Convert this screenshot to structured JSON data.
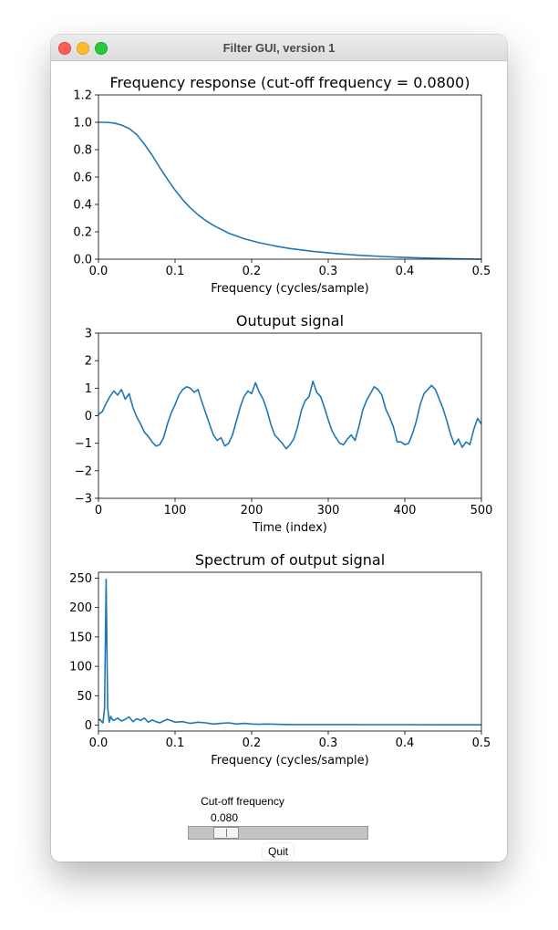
{
  "window": {
    "title": "Filter GUI, version 1"
  },
  "colors": {
    "line": "#1f77b4"
  },
  "controls": {
    "slider_label": "Cut-off frequency",
    "slider_value": "0.080",
    "slider_fraction": 0.16,
    "quit_label": "Quit"
  },
  "chart_data": [
    {
      "type": "line",
      "title": "Frequency response (cut-off frequency = 0.0800)",
      "xlabel": "Frequency (cycles/sample)",
      "ylabel": "",
      "xlim": [
        0,
        0.5
      ],
      "ylim": [
        0,
        1.2
      ],
      "xticks": [
        "0.0",
        "0.1",
        "0.2",
        "0.3",
        "0.4",
        "0.5"
      ],
      "yticks": [
        "0.0",
        "0.2",
        "0.4",
        "0.6",
        "0.8",
        "1.0",
        "1.2"
      ],
      "grid": false,
      "series": [
        {
          "x": [
            0,
            0.01,
            0.02,
            0.03,
            0.04,
            0.05,
            0.06,
            0.07,
            0.08,
            0.09,
            0.1,
            0.11,
            0.12,
            0.13,
            0.14,
            0.15,
            0.17,
            0.19,
            0.21,
            0.23,
            0.25,
            0.28,
            0.31,
            0.34,
            0.37,
            0.4,
            0.43,
            0.46,
            0.5
          ],
          "y": [
            1.0,
            1.0,
            0.995,
            0.98,
            0.955,
            0.91,
            0.84,
            0.76,
            0.67,
            0.585,
            0.505,
            0.435,
            0.375,
            0.325,
            0.283,
            0.247,
            0.19,
            0.15,
            0.12,
            0.097,
            0.078,
            0.057,
            0.041,
            0.029,
            0.02,
            0.013,
            0.008,
            0.004,
            0.0
          ]
        }
      ]
    },
    {
      "type": "line",
      "title": "Outuput signal",
      "xlabel": "Time (index)",
      "ylabel": "",
      "xlim": [
        0,
        500
      ],
      "ylim": [
        -3,
        3
      ],
      "xticks": [
        "0",
        "100",
        "200",
        "300",
        "400",
        "500"
      ],
      "yticks": [
        "−3",
        "−2",
        "−1",
        "0",
        "1",
        "2",
        "3"
      ],
      "grid": false,
      "series": [
        {
          "x": [
            0,
            5,
            10,
            15,
            20,
            25,
            30,
            35,
            40,
            45,
            50,
            55,
            60,
            65,
            70,
            75,
            80,
            85,
            90,
            95,
            100,
            105,
            110,
            115,
            120,
            125,
            130,
            135,
            140,
            145,
            150,
            155,
            160,
            165,
            170,
            175,
            180,
            185,
            190,
            195,
            200,
            205,
            210,
            215,
            220,
            225,
            230,
            235,
            240,
            245,
            250,
            255,
            260,
            265,
            270,
            275,
            280,
            285,
            290,
            295,
            300,
            305,
            310,
            315,
            320,
            325,
            330,
            335,
            340,
            345,
            350,
            355,
            360,
            365,
            370,
            375,
            380,
            385,
            390,
            395,
            400,
            405,
            410,
            415,
            420,
            425,
            430,
            435,
            440,
            445,
            450,
            455,
            460,
            465,
            470,
            475,
            480,
            485,
            490,
            495,
            500
          ],
          "y": [
            0.05,
            0.15,
            0.45,
            0.7,
            0.9,
            0.75,
            0.95,
            0.6,
            0.8,
            0.3,
            -0.05,
            -0.3,
            -0.6,
            -0.75,
            -0.95,
            -1.1,
            -1.05,
            -0.8,
            -0.3,
            0.1,
            0.4,
            0.75,
            0.95,
            1.05,
            1.0,
            0.85,
            0.95,
            0.5,
            0.1,
            -0.3,
            -0.7,
            -0.9,
            -0.8,
            -1.1,
            -1.0,
            -0.7,
            -0.2,
            0.3,
            0.7,
            0.9,
            0.8,
            1.2,
            0.85,
            0.6,
            0.2,
            -0.3,
            -0.7,
            -0.85,
            -1.0,
            -1.2,
            -1.05,
            -0.85,
            -0.4,
            0.2,
            0.55,
            0.7,
            1.25,
            0.85,
            0.7,
            0.3,
            -0.15,
            -0.55,
            -0.8,
            -1.0,
            -1.05,
            -0.85,
            -0.7,
            -0.9,
            -0.4,
            0.2,
            0.55,
            0.8,
            1.05,
            0.95,
            0.75,
            0.25,
            -0.05,
            -0.4,
            -0.95,
            -0.95,
            -1.05,
            -1.0,
            -0.65,
            -0.2,
            0.4,
            0.8,
            0.95,
            1.1,
            0.95,
            0.6,
            0.25,
            -0.2,
            -0.7,
            -1.05,
            -0.85,
            -1.15,
            -0.95,
            -1.05,
            -0.5,
            -0.1,
            -0.3
          ]
        }
      ]
    },
    {
      "type": "line",
      "title": "Spectrum of output signal",
      "xlabel": "Frequency (cycles/sample)",
      "ylabel": "",
      "xlim": [
        0,
        0.5
      ],
      "ylim": [
        -10,
        260
      ],
      "xticks": [
        "0.0",
        "0.1",
        "0.2",
        "0.3",
        "0.4",
        "0.5"
      ],
      "yticks": [
        "0",
        "50",
        "100",
        "150",
        "200",
        "250"
      ],
      "grid": false,
      "series": [
        {
          "x": [
            0,
            0.002,
            0.004,
            0.006,
            0.008,
            0.01,
            0.012,
            0.014,
            0.016,
            0.018,
            0.02,
            0.025,
            0.03,
            0.035,
            0.04,
            0.045,
            0.05,
            0.055,
            0.06,
            0.065,
            0.07,
            0.075,
            0.08,
            0.085,
            0.09,
            0.1,
            0.11,
            0.12,
            0.13,
            0.14,
            0.15,
            0.16,
            0.17,
            0.18,
            0.19,
            0.2,
            0.21,
            0.22,
            0.25,
            0.3,
            0.35,
            0.4,
            0.45,
            0.5
          ],
          "y": [
            8,
            10,
            6,
            4,
            30,
            248,
            30,
            5,
            15,
            10,
            8,
            12,
            7,
            10,
            14,
            6,
            11,
            8,
            12,
            5,
            9,
            6,
            4,
            7,
            10,
            5,
            6,
            3,
            5,
            4,
            2,
            3,
            4,
            2,
            3,
            2,
            1.5,
            2,
            1,
            1,
            0.8,
            0.8,
            0.6,
            0.5
          ]
        }
      ]
    }
  ]
}
